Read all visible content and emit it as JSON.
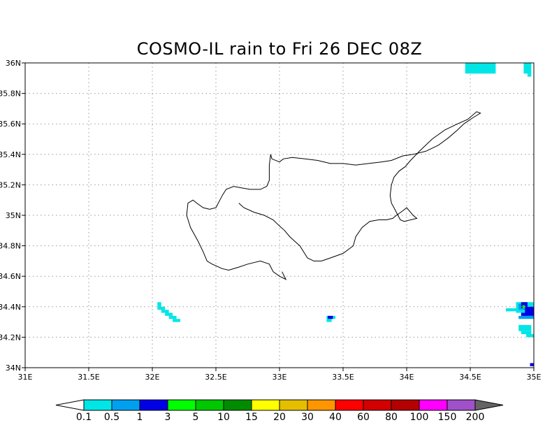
{
  "title": "COSMO-IL rain to Fri 26 DEC 08Z",
  "map": {
    "lon_range": [
      31,
      35
    ],
    "lat_range": [
      34,
      36
    ],
    "grid": true,
    "x_ticks": [
      {
        "value": 31,
        "label": "31E"
      },
      {
        "value": 31.5,
        "label": "31.5E"
      },
      {
        "value": 32,
        "label": "32E"
      },
      {
        "value": 32.5,
        "label": "32.5E"
      },
      {
        "value": 33,
        "label": "33E"
      },
      {
        "value": 33.5,
        "label": "33.5E"
      },
      {
        "value": 34,
        "label": "34E"
      },
      {
        "value": 34.5,
        "label": "34.5E"
      },
      {
        "value": 35,
        "label": "35E"
      }
    ],
    "y_ticks": [
      {
        "value": 34,
        "label": "34N"
      },
      {
        "value": 34.2,
        "label": "34.2N"
      },
      {
        "value": 34.4,
        "label": "34.4N"
      },
      {
        "value": 34.6,
        "label": "34.6N"
      },
      {
        "value": 34.8,
        "label": "34.8N"
      },
      {
        "value": 35,
        "label": "35N"
      },
      {
        "value": 35.2,
        "label": "35.2N"
      },
      {
        "value": 35.4,
        "label": "35.4N"
      },
      {
        "value": 35.6,
        "label": "35.6N"
      },
      {
        "value": 35.8,
        "label": "35.8N"
      },
      {
        "value": 36,
        "label": "36N"
      }
    ],
    "coastline": [
      [
        32.68,
        35.08
      ],
      [
        32.72,
        35.05
      ],
      [
        32.8,
        35.02
      ],
      [
        32.88,
        35.0
      ],
      [
        32.95,
        34.97
      ],
      [
        33.0,
        34.93
      ],
      [
        33.04,
        34.9
      ],
      [
        33.08,
        34.86
      ],
      [
        33.12,
        34.83
      ],
      [
        33.16,
        34.8
      ],
      [
        33.22,
        34.72
      ],
      [
        33.27,
        34.7
      ],
      [
        33.33,
        34.7
      ],
      [
        33.4,
        34.72
      ],
      [
        33.5,
        34.75
      ],
      [
        33.58,
        34.8
      ],
      [
        33.6,
        34.86
      ],
      [
        33.65,
        34.92
      ],
      [
        33.71,
        34.96
      ],
      [
        33.78,
        34.97
      ],
      [
        33.84,
        34.97
      ],
      [
        33.89,
        34.98
      ],
      [
        33.92,
        35.0
      ],
      [
        33.97,
        35.03
      ],
      [
        34.0,
        35.05
      ],
      [
        34.05,
        35.0
      ],
      [
        34.08,
        34.98
      ],
      [
        33.98,
        34.96
      ],
      [
        33.95,
        34.97
      ],
      [
        33.9,
        35.05
      ],
      [
        33.88,
        35.08
      ],
      [
        33.87,
        35.13
      ],
      [
        33.88,
        35.2
      ],
      [
        33.9,
        35.25
      ],
      [
        33.94,
        35.29
      ],
      [
        33.99,
        35.32
      ],
      [
        34.03,
        35.36
      ],
      [
        34.1,
        35.42
      ],
      [
        34.2,
        35.5
      ],
      [
        34.3,
        35.56
      ],
      [
        34.4,
        35.6
      ],
      [
        34.48,
        35.63
      ],
      [
        34.55,
        35.68
      ],
      [
        34.58,
        35.67
      ],
      [
        34.52,
        35.64
      ],
      [
        34.45,
        35.6
      ],
      [
        34.4,
        35.56
      ],
      [
        34.33,
        35.51
      ],
      [
        34.25,
        35.46
      ],
      [
        34.15,
        35.42
      ],
      [
        34.05,
        35.4
      ],
      [
        33.97,
        35.39
      ],
      [
        33.88,
        35.36
      ],
      [
        33.8,
        35.35
      ],
      [
        33.7,
        35.34
      ],
      [
        33.6,
        35.33
      ],
      [
        33.5,
        35.34
      ],
      [
        33.4,
        35.34
      ],
      [
        33.3,
        35.36
      ],
      [
        33.2,
        35.37
      ],
      [
        33.1,
        35.38
      ],
      [
        33.03,
        35.37
      ],
      [
        33.0,
        35.35
      ],
      [
        32.94,
        35.37
      ],
      [
        32.93,
        35.4
      ],
      [
        32.92,
        35.33
      ],
      [
        32.92,
        35.23
      ],
      [
        32.9,
        35.19
      ],
      [
        32.85,
        35.17
      ],
      [
        32.77,
        35.17
      ],
      [
        32.7,
        35.18
      ],
      [
        32.64,
        35.19
      ],
      [
        32.58,
        35.17
      ],
      [
        32.55,
        35.13
      ],
      [
        32.5,
        35.05
      ],
      [
        32.45,
        35.04
      ],
      [
        32.4,
        35.05
      ],
      [
        32.35,
        35.08
      ],
      [
        32.32,
        35.1
      ],
      [
        32.28,
        35.08
      ],
      [
        32.27,
        35.0
      ],
      [
        32.3,
        34.92
      ],
      [
        32.36,
        34.83
      ],
      [
        32.4,
        34.76
      ],
      [
        32.43,
        34.7
      ],
      [
        32.47,
        34.68
      ],
      [
        32.55,
        34.65
      ],
      [
        32.6,
        34.64
      ],
      [
        32.68,
        34.66
      ],
      [
        32.75,
        34.68
      ],
      [
        32.85,
        34.7
      ],
      [
        32.92,
        34.68
      ],
      [
        32.95,
        34.63
      ],
      [
        33.0,
        34.6
      ],
      [
        33.05,
        34.58
      ],
      [
        33.02,
        34.63
      ]
    ],
    "rain_cells": [
      {
        "lon": [
          34.46,
          34.7
        ],
        "lat": [
          35.93,
          36.0
        ],
        "category": 0
      },
      {
        "lon": [
          34.92,
          34.98
        ],
        "lat": [
          35.93,
          36.0
        ],
        "category": 0
      },
      {
        "lon": [
          34.95,
          34.98
        ],
        "lat": [
          35.91,
          35.93
        ],
        "category": 0
      },
      {
        "lon": [
          32.04,
          32.07
        ],
        "lat": [
          34.4,
          34.43
        ],
        "category": 0
      },
      {
        "lon": [
          32.04,
          32.1
        ],
        "lat": [
          34.38,
          34.4
        ],
        "category": 0
      },
      {
        "lon": [
          32.07,
          32.13
        ],
        "lat": [
          34.36,
          34.38
        ],
        "category": 0
      },
      {
        "lon": [
          32.1,
          32.16
        ],
        "lat": [
          34.34,
          34.36
        ],
        "category": 0
      },
      {
        "lon": [
          32.13,
          32.19
        ],
        "lat": [
          34.32,
          34.34
        ],
        "category": 0
      },
      {
        "lon": [
          32.16,
          32.22
        ],
        "lat": [
          34.3,
          34.32
        ],
        "category": 0
      },
      {
        "lon": [
          33.37,
          33.44
        ],
        "lat": [
          34.32,
          34.34
        ],
        "category": 0
      },
      {
        "lon": [
          33.37,
          33.41
        ],
        "lat": [
          34.3,
          34.32
        ],
        "category": 0
      },
      {
        "lon": [
          33.38,
          33.42
        ],
        "lat": [
          34.32,
          34.34
        ],
        "category": 2
      },
      {
        "lon": [
          34.78,
          34.86
        ],
        "lat": [
          34.37,
          34.39
        ],
        "category": 0
      },
      {
        "lon": [
          34.86,
          35.0
        ],
        "lat": [
          34.36,
          34.43
        ],
        "category": 0
      },
      {
        "lon": [
          34.88,
          34.94
        ],
        "lat": [
          34.38,
          34.42
        ],
        "category": 1
      },
      {
        "lon": [
          34.9,
          34.95
        ],
        "lat": [
          34.39,
          34.43
        ],
        "category": 2
      },
      {
        "lon": [
          34.93,
          35.0
        ],
        "lat": [
          34.34,
          34.4
        ],
        "category": 2
      },
      {
        "lon": [
          34.9,
          34.95
        ],
        "lat": [
          34.34,
          34.36
        ],
        "category": 2
      },
      {
        "lon": [
          34.91,
          34.93
        ],
        "lat": [
          34.39,
          34.41
        ],
        "category": 3
      },
      {
        "lon": [
          34.88,
          35.0
        ],
        "lat": [
          34.32,
          34.34
        ],
        "category": 1
      },
      {
        "lon": [
          34.88,
          34.98
        ],
        "lat": [
          34.24,
          34.28
        ],
        "category": 0
      },
      {
        "lon": [
          34.9,
          34.98
        ],
        "lat": [
          34.22,
          34.24
        ],
        "category": 0
      },
      {
        "lon": [
          34.94,
          35.0
        ],
        "lat": [
          34.2,
          34.22
        ],
        "category": 0
      },
      {
        "lon": [
          34.97,
          35.0
        ],
        "lat": [
          34.01,
          34.03
        ],
        "category": 2
      }
    ]
  },
  "colorbar": {
    "colors": [
      "#00e6e6",
      "#00a0f0",
      "#0000e6",
      "#00ff00",
      "#00c800",
      "#008c00",
      "#ffff00",
      "#e6be00",
      "#ff9600",
      "#ff0000",
      "#d20000",
      "#b40000",
      "#ff00ff",
      "#a050c8"
    ],
    "low_color": "#ffffff",
    "high_color": "#646464",
    "labels": [
      "0.1",
      "0.5",
      "1",
      "3",
      "5",
      "10",
      "15",
      "20",
      "30",
      "40",
      "60",
      "80",
      "100",
      "150",
      "200"
    ]
  }
}
